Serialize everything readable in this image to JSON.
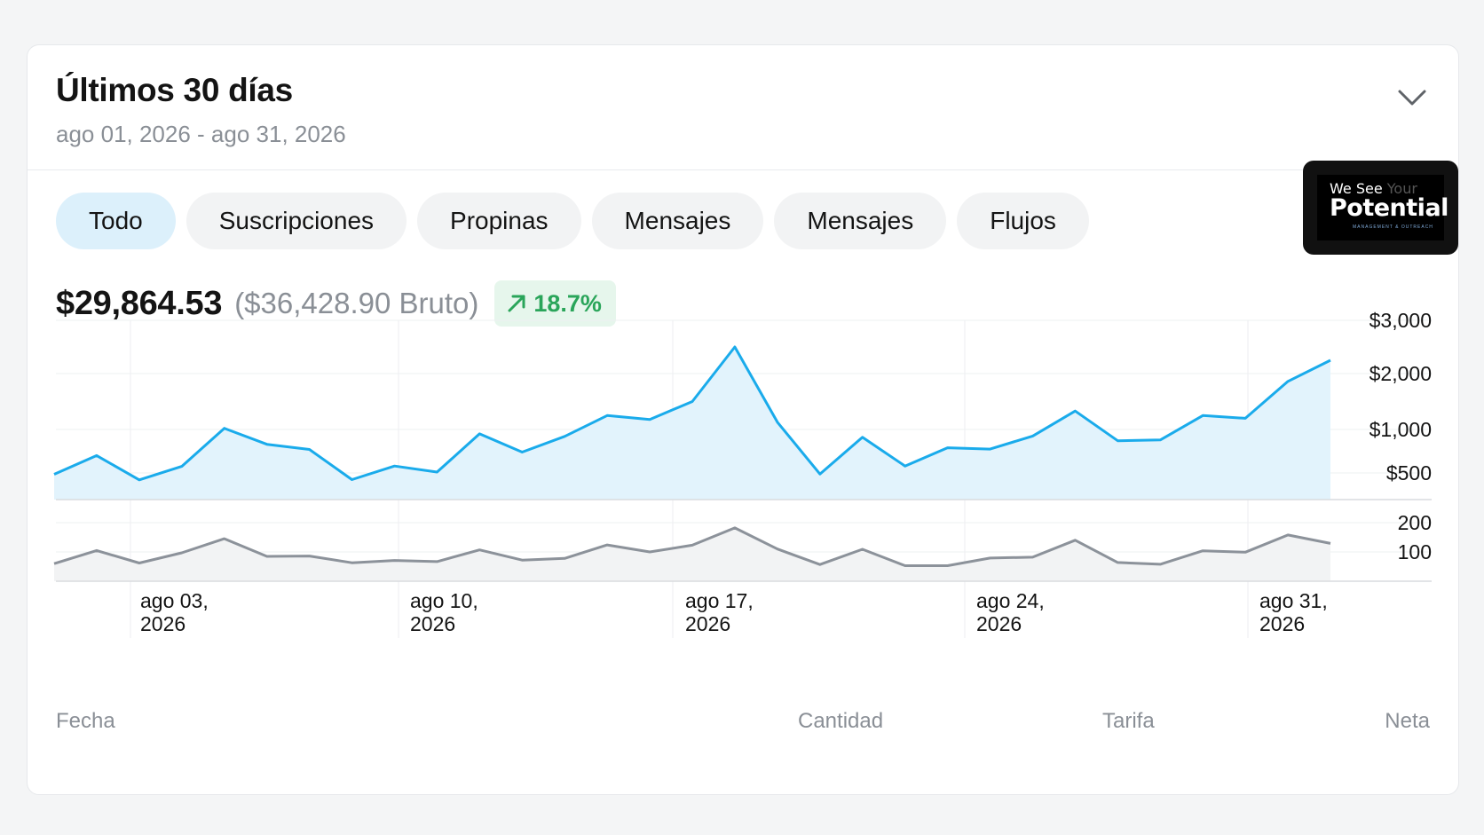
{
  "header": {
    "title": "Últimos 30 días",
    "date_range": "ago 01, 2026 - ago 31, 2026"
  },
  "tabs": [
    {
      "label": "Todo",
      "active": true
    },
    {
      "label": "Suscripciones",
      "active": false
    },
    {
      "label": "Propinas",
      "active": false
    },
    {
      "label": "Mensajes",
      "active": false
    },
    {
      "label": "Mensajes",
      "active": false
    },
    {
      "label": "Flujos",
      "active": false
    }
  ],
  "logo": {
    "line1a": "We See",
    "line1b": "Your",
    "line2": "Potential",
    "line3": "MANAGEMENT & OUTREACH"
  },
  "summary": {
    "net": "$29,864.53",
    "gross": "($36,428.90 Bruto)",
    "change": "18.7%",
    "change_color": "#2aa55a"
  },
  "chart_data": [
    {
      "type": "area",
      "series": [
        {
          "values": [
            475,
            700,
            370,
            575,
            1020,
            830,
            770,
            375,
            580,
            510,
            950,
            740,
            920,
            1250,
            1180,
            1500,
            2500,
            1130,
            480,
            910,
            580,
            790,
            775,
            925,
            1330,
            870,
            880,
            1250,
            1200,
            1860,
            2250
          ]
        }
      ],
      "x_ticks": [
        "ago 03,\n2026",
        "ago 10,\n2026",
        "ago 17,\n2026",
        "ago 24,\n2026",
        "ago 31,\n2026"
      ],
      "y_ticks": [
        "$3,000",
        "$2,000",
        "$1,000",
        "$500"
      ],
      "color": "#1aabeb",
      "fill": "#e2f3fc",
      "grid": true
    },
    {
      "type": "area",
      "series": [
        {
          "values": [
            60,
            105,
            62,
            97,
            145,
            85,
            86,
            63,
            71,
            67,
            107,
            72,
            78,
            124,
            100,
            123,
            182,
            110,
            57,
            109,
            53,
            53,
            79,
            82,
            140,
            64,
            58,
            104,
            99,
            158,
            129
          ]
        }
      ],
      "y_ticks": [
        "200",
        "100"
      ],
      "color": "#8c929a",
      "fill": "#f2f3f4",
      "grid": true
    }
  ],
  "footer": {
    "date": "Fecha",
    "amount": "Cantidad",
    "fee": "Tarifa",
    "net": "Neta"
  }
}
